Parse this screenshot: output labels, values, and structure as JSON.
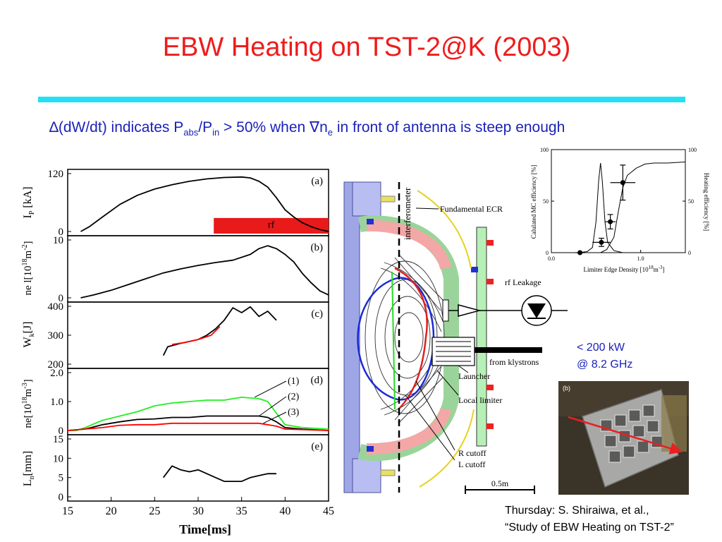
{
  "slide": {
    "title": "EBW Heating on TST-2@K (2003)",
    "subtitle": {
      "delta": "∆",
      "part1": "(dW/dt) indicates P",
      "sub_abs": "abs",
      "slash": "/P",
      "sub_in": "in",
      "part2": " > 50% when ",
      "nabla": "∇",
      "n": "n",
      "sub_e": "e",
      "part3": " in front of antenna is steep enough"
    },
    "credit_line1": "Thursday:  S. Shiraiwa, et al.,",
    "credit_line2": "“Study of EBW Heating on TST-2”",
    "power_line1": "< 200 kW",
    "power_line2": "@ 8.2 GHz",
    "colors": {
      "title": "#ee1c1c",
      "subtitle": "#1a22b8",
      "rule": "#23e0f4"
    }
  },
  "chart_data": [
    {
      "type": "line",
      "id": "time-traces",
      "x_label": "Time[ms]",
      "xlim": [
        15,
        45
      ],
      "x_ticks": [
        "15",
        "20",
        "25",
        "30",
        "35",
        "40",
        "45"
      ],
      "panels": [
        {
          "tag": "(a)",
          "ylabel_main": "I",
          "ylabel_sub": "P",
          "ylabel_unit": " [kA]",
          "ylim": [
            0,
            120
          ],
          "y_ticks": [
            "0",
            "120"
          ],
          "rf_label": "rf",
          "rf_window": [
            31.8,
            45
          ],
          "series": [
            {
              "color": "black",
              "points": [
                [
                  16.5,
                  0
                ],
                [
                  17.5,
                  10
                ],
                [
                  19,
                  30
                ],
                [
                  21,
                  56
                ],
                [
                  23,
                  75
                ],
                [
                  25,
                  88
                ],
                [
                  27,
                  97
                ],
                [
                  29,
                  104
                ],
                [
                  31,
                  109
                ],
                [
                  33,
                  112
                ],
                [
                  35,
                  113
                ],
                [
                  36,
                  111
                ],
                [
                  37,
                  104
                ],
                [
                  38,
                  92
                ],
                [
                  39,
                  70
                ],
                [
                  40,
                  45
                ],
                [
                  41,
                  30
                ],
                [
                  42,
                  18
                ],
                [
                  43,
                  10
                ],
                [
                  44,
                  4
                ],
                [
                  45,
                  0
                ]
              ]
            }
          ]
        },
        {
          "tag": "(b)",
          "ylabel_main": "ne l[10",
          "ylabel_sup": "18",
          "ylabel_unit": "m",
          "ylabel_sup2": "-2",
          "ylabel_close": "]",
          "ylim": [
            0,
            10
          ],
          "y_ticks": [
            "0",
            "10"
          ],
          "series": [
            {
              "color": "black",
              "points": [
                [
                  16.5,
                  0
                ],
                [
                  18,
                  0.5
                ],
                [
                  20,
                  1.3
                ],
                [
                  22,
                  2.3
                ],
                [
                  24,
                  3.3
                ],
                [
                  25,
                  3.8
                ],
                [
                  26,
                  4.3
                ],
                [
                  28,
                  5
                ],
                [
                  30,
                  5.6
                ],
                [
                  32,
                  6.1
                ],
                [
                  34,
                  6.5
                ],
                [
                  36,
                  7.5
                ],
                [
                  37,
                  8.5
                ],
                [
                  38,
                  9
                ],
                [
                  39,
                  8.5
                ],
                [
                  40,
                  7.5
                ],
                [
                  41,
                  6.2
                ],
                [
                  42,
                  4.2
                ],
                [
                  43,
                  2.6
                ],
                [
                  44,
                  1.2
                ],
                [
                  45,
                  0.5
                ]
              ]
            }
          ]
        },
        {
          "tag": "(c)",
          "ylabel_main": "W",
          "ylabel_sub": "k",
          "ylabel_unit": "[J]",
          "ylim": [
            200,
            400
          ],
          "y_ticks": [
            "200",
            "300",
            "400"
          ],
          "series": [
            {
              "color": "black",
              "points": [
                [
                  26,
                  230
                ],
                [
                  26.5,
                  260
                ],
                [
                  28,
                  272
                ],
                [
                  30,
                  285
                ],
                [
                  31,
                  300
                ],
                [
                  32,
                  322
                ],
                [
                  33,
                  352
                ],
                [
                  34,
                  395
                ],
                [
                  35,
                  378
                ],
                [
                  36,
                  398
                ],
                [
                  37,
                  365
                ],
                [
                  38,
                  383
                ],
                [
                  39,
                  352
                ]
              ]
            },
            {
              "color": "red",
              "points": [
                [
                  27,
                  268
                ],
                [
                  28.5,
                  275
                ],
                [
                  30,
                  285
                ],
                [
                  31.5,
                  300
                ],
                [
                  32.5,
                  330
                ]
              ]
            }
          ]
        },
        {
          "tag": "(d)",
          "ylabel_main": "ne[10",
          "ylabel_sup": "18",
          "ylabel_unit": "m",
          "ylabel_sup2": "-3",
          "ylabel_close": "]",
          "ylim": [
            0,
            2.0
          ],
          "y_ticks": [
            "0",
            "1.0",
            "2.0"
          ],
          "labels": [
            "(1)",
            "(2)",
            "(3)"
          ],
          "series": [
            {
              "name": "(1)",
              "color": "#22ee22",
              "points": [
                [
                  15,
                  0
                ],
                [
                  16,
                  0
                ],
                [
                  17,
                  0.1
                ],
                [
                  19,
                  0.35
                ],
                [
                  21,
                  0.5
                ],
                [
                  23,
                  0.65
                ],
                [
                  25,
                  0.85
                ],
                [
                  27,
                  0.95
                ],
                [
                  29,
                  1.0
                ],
                [
                  31,
                  1.05
                ],
                [
                  33,
                  1.05
                ],
                [
                  35,
                  1.15
                ],
                [
                  37,
                  1.1
                ],
                [
                  38,
                  1.0
                ],
                [
                  39,
                  0.6
                ],
                [
                  40,
                  0.2
                ],
                [
                  42,
                  0.1
                ],
                [
                  45,
                  0.05
                ]
              ]
            },
            {
              "name": "(2)",
              "color": "black",
              "points": [
                [
                  15,
                  0
                ],
                [
                  17,
                  0.05
                ],
                [
                  19,
                  0.2
                ],
                [
                  21,
                  0.3
                ],
                [
                  23,
                  0.38
                ],
                [
                  25,
                  0.4
                ],
                [
                  27,
                  0.45
                ],
                [
                  29,
                  0.45
                ],
                [
                  31,
                  0.5
                ],
                [
                  33,
                  0.5
                ],
                [
                  35,
                  0.5
                ],
                [
                  37,
                  0.5
                ],
                [
                  38,
                  0.45
                ],
                [
                  39,
                  0.3
                ],
                [
                  40,
                  0.1
                ],
                [
                  42,
                  0.05
                ],
                [
                  45,
                  0
                ]
              ]
            },
            {
              "name": "(3)",
              "color": "red",
              "points": [
                [
                  15,
                  0
                ],
                [
                  17,
                  0.05
                ],
                [
                  19,
                  0.1
                ],
                [
                  21,
                  0.18
                ],
                [
                  23,
                  0.2
                ],
                [
                  25,
                  0.2
                ],
                [
                  27,
                  0.25
                ],
                [
                  29,
                  0.25
                ],
                [
                  31,
                  0.25
                ],
                [
                  33,
                  0.25
                ],
                [
                  35,
                  0.25
                ],
                [
                  37,
                  0.25
                ],
                [
                  38,
                  0.2
                ],
                [
                  39,
                  0.15
                ],
                [
                  40,
                  0.05
                ],
                [
                  45,
                  0
                ]
              ]
            }
          ]
        },
        {
          "tag": "(e)",
          "ylabel_main": "L",
          "ylabel_sub": "n",
          "ylabel_unit": "[mm]",
          "ylim": [
            0,
            15
          ],
          "y_ticks": [
            "0",
            "5",
            "10",
            "15"
          ],
          "series": [
            {
              "color": "black",
              "points": [
                [
                  26,
                  5
                ],
                [
                  27,
                  8
                ],
                [
                  28,
                  7
                ],
                [
                  29,
                  6.5
                ],
                [
                  30,
                  7
                ],
                [
                  31,
                  6
                ],
                [
                  32,
                  5
                ],
                [
                  33,
                  4
                ],
                [
                  34,
                  4
                ],
                [
                  35,
                  4
                ],
                [
                  36,
                  5
                ],
                [
                  37,
                  5.5
                ],
                [
                  38,
                  6
                ],
                [
                  39,
                  6
                ]
              ]
            }
          ]
        }
      ]
    },
    {
      "type": "scatter",
      "id": "efficiency-inset",
      "xlabel_main": "Limiter Edge Density [10",
      "xlabel_sup": "18",
      "xlabel_unit": "m",
      "xlabel_sup2": "-3",
      "xlabel_close": "]",
      "ylabel_left": "Calulated MC efficiency [%]",
      "ylabel_right": "Heating efficiency [%]",
      "xlim": [
        0,
        1.5
      ],
      "ylim": [
        0,
        100
      ],
      "x_ticks": [
        "0.0",
        "1.0"
      ],
      "y_ticks": [
        "0",
        "50",
        "100"
      ],
      "y2_ticks": [
        "0",
        "50",
        "100"
      ],
      "points": [
        {
          "x": 0.32,
          "y": 0,
          "xerr": 0.05,
          "yerr": 0
        },
        {
          "x": 0.56,
          "y": 10,
          "xerr": 0.1,
          "yerr": 4
        },
        {
          "x": 0.66,
          "y": 30,
          "xerr": 0.06,
          "yerr": 7
        },
        {
          "x": 0.8,
          "y": 68,
          "xerr": 0.14,
          "yerr": 17
        }
      ],
      "curve_mc": [
        [
          0.3,
          0
        ],
        [
          0.4,
          1
        ],
        [
          0.46,
          5
        ],
        [
          0.5,
          30
        ],
        [
          0.53,
          70
        ],
        [
          0.55,
          87
        ],
        [
          0.57,
          70
        ],
        [
          0.6,
          30
        ],
        [
          0.63,
          10
        ],
        [
          0.7,
          2
        ],
        [
          0.8,
          0
        ]
      ],
      "curve_heating": [
        [
          0.55,
          0
        ],
        [
          0.62,
          3
        ],
        [
          0.7,
          15
        ],
        [
          0.75,
          40
        ],
        [
          0.8,
          63
        ],
        [
          0.85,
          75
        ],
        [
          0.95,
          82
        ],
        [
          1.05,
          86
        ],
        [
          1.15,
          87
        ],
        [
          1.3,
          87
        ],
        [
          1.5,
          88
        ]
      ]
    }
  ],
  "diagram": {
    "interferometer_label": "interferometer",
    "fundamental_ecr": "Fundamental ECR",
    "rf_leakage": "rf Leakage",
    "from_klystrons": "from klystrons",
    "launcher": "Launcher",
    "local_limiter": "Local limiter",
    "r_cutoff": "R cutoff",
    "l_cutoff": "L cutoff",
    "scale_bar": "0.5m"
  },
  "photo": {
    "panel_label": "(b)"
  }
}
